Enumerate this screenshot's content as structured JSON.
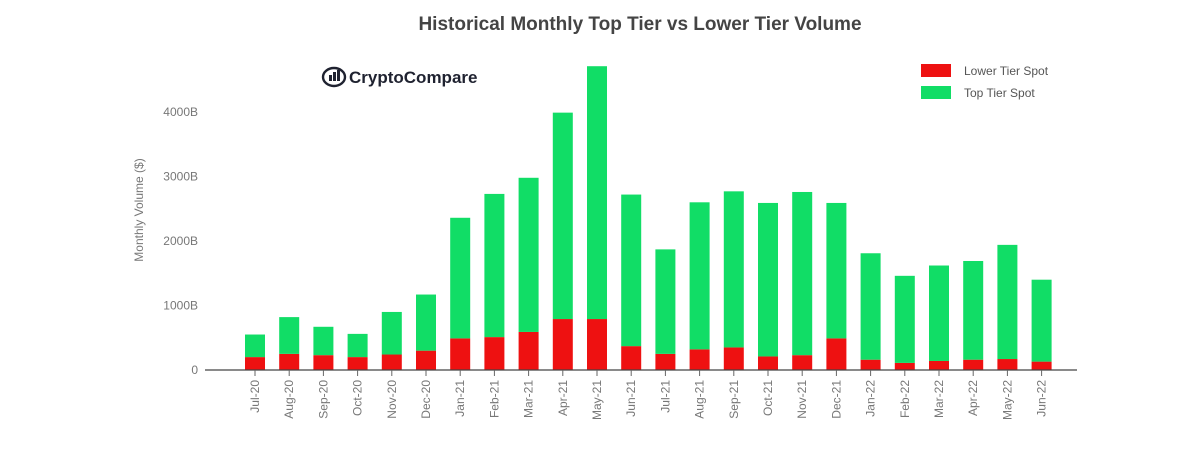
{
  "colors": {
    "lower": "#ee1111",
    "top": "#11dd66",
    "axis_text": "#777777",
    "title_text": "#444444",
    "logo_text": "#1f2230"
  },
  "logo": {
    "text": "CryptoCompare"
  },
  "chart_data": {
    "type": "bar",
    "stacked": true,
    "title": "Historical Monthly Top Tier vs Lower Tier Volume",
    "xlabel": "",
    "ylabel": "Monthly Volume ($)",
    "ylim": [
      0,
      4700
    ],
    "yticks": [
      {
        "value": 0,
        "label": "0"
      },
      {
        "value": 1000,
        "label": "1000B"
      },
      {
        "value": 2000,
        "label": "2000B"
      },
      {
        "value": 3000,
        "label": "3000B"
      },
      {
        "value": 4000,
        "label": "4000B"
      }
    ],
    "legend_position": "top-right",
    "grid": false,
    "categories": [
      "Jul-20",
      "Aug-20",
      "Sep-20",
      "Oct-20",
      "Nov-20",
      "Dec-20",
      "Jan-21",
      "Feb-21",
      "Mar-21",
      "Apr-21",
      "May-21",
      "Jun-21",
      "Jul-21",
      "Aug-21",
      "Sep-21",
      "Oct-21",
      "Nov-21",
      "Dec-21",
      "Jan-22",
      "Feb-22",
      "Mar-22",
      "Apr-22",
      "May-22",
      "Jun-22"
    ],
    "series": [
      {
        "name": "Lower Tier Spot",
        "color_key": "lower",
        "values": [
          200,
          250,
          230,
          200,
          240,
          300,
          490,
          510,
          590,
          790,
          790,
          370,
          250,
          320,
          350,
          210,
          230,
          490,
          160,
          110,
          140,
          160,
          170,
          130
        ]
      },
      {
        "name": "Top Tier Spot",
        "color_key": "top",
        "values": [
          350,
          570,
          440,
          360,
          660,
          870,
          1870,
          2220,
          2390,
          3200,
          3920,
          2350,
          1620,
          2280,
          2420,
          2380,
          2530,
          2100,
          1650,
          1350,
          1480,
          1530,
          1770,
          1270
        ]
      }
    ]
  }
}
